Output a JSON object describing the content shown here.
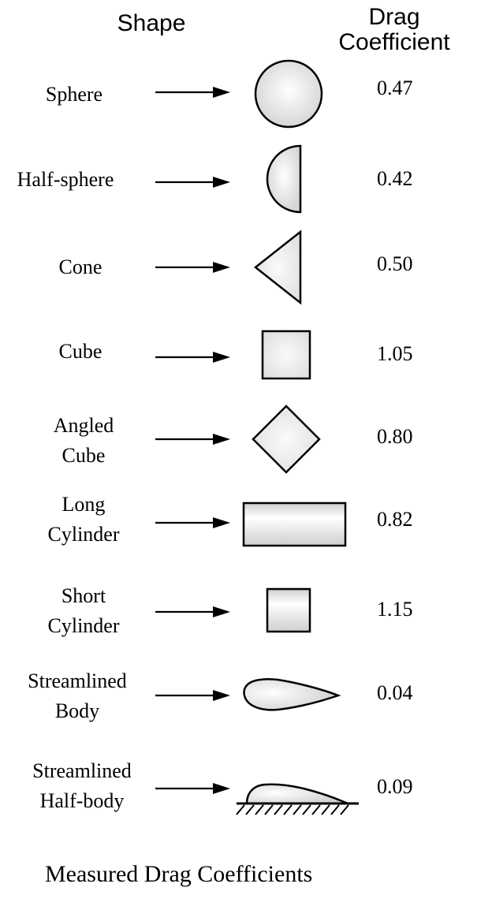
{
  "headers": {
    "shape": "Shape",
    "drag_line1": "Drag",
    "drag_line2": "Coefficient"
  },
  "rows": [
    {
      "name_lines": [
        "Sphere"
      ],
      "value": "0.47",
      "shape": "sphere"
    },
    {
      "name_lines": [
        "Half-sphere"
      ],
      "value": "0.42",
      "shape": "half-sphere"
    },
    {
      "name_lines": [
        "Cone"
      ],
      "value": "0.50",
      "shape": "cone"
    },
    {
      "name_lines": [
        "Cube"
      ],
      "value": "1.05",
      "shape": "cube"
    },
    {
      "name_lines": [
        "Angled",
        "Cube"
      ],
      "value": "0.80",
      "shape": "angled-cube"
    },
    {
      "name_lines": [
        "Long",
        "Cylinder"
      ],
      "value": "0.82",
      "shape": "long-cylinder"
    },
    {
      "name_lines": [
        "Short",
        "Cylinder"
      ],
      "value": "1.15",
      "shape": "short-cylinder"
    },
    {
      "name_lines": [
        "Streamlined",
        "Body"
      ],
      "value": "0.04",
      "shape": "streamlined-body"
    },
    {
      "name_lines": [
        "Streamlined",
        "Half-body"
      ],
      "value": "0.09",
      "shape": "streamlined-half-body"
    }
  ],
  "caption": "Measured Drag Coefficients",
  "colors": {
    "shape_fill_light": "#ffffff",
    "shape_fill_dark": "#d4d4d4",
    "stroke": "#000000"
  }
}
